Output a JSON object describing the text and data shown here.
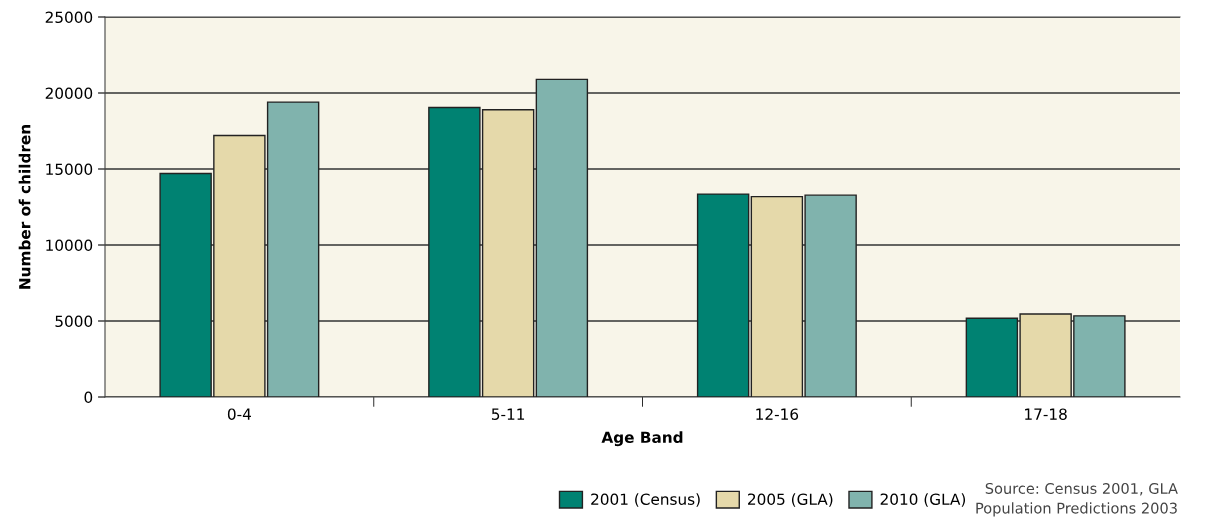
{
  "chart_data": {
    "type": "bar",
    "xlabel": "Age Band",
    "ylabel": "Number of children",
    "categories": [
      "0-4",
      "5-11",
      "12-16",
      "17-18"
    ],
    "series": [
      {
        "name": "2001 (Census)",
        "color": "#008272",
        "values": [
          14700,
          19050,
          13350,
          5180
        ]
      },
      {
        "name": "2005 (GLA)",
        "color": "#e5d9aa",
        "values": [
          17200,
          18900,
          13180,
          5460
        ]
      },
      {
        "name": "2010 (GLA)",
        "color": "#80b3ad",
        "values": [
          19400,
          20900,
          13280,
          5340
        ]
      }
    ],
    "ylim": [
      0,
      25000
    ],
    "yticks": [
      0,
      5000,
      10000,
      15000,
      20000,
      25000
    ],
    "grid": "y",
    "legend": "bottom",
    "annotations": [
      "Source: Census 2001, GLA\nPopulation Predictions 2003"
    ]
  }
}
